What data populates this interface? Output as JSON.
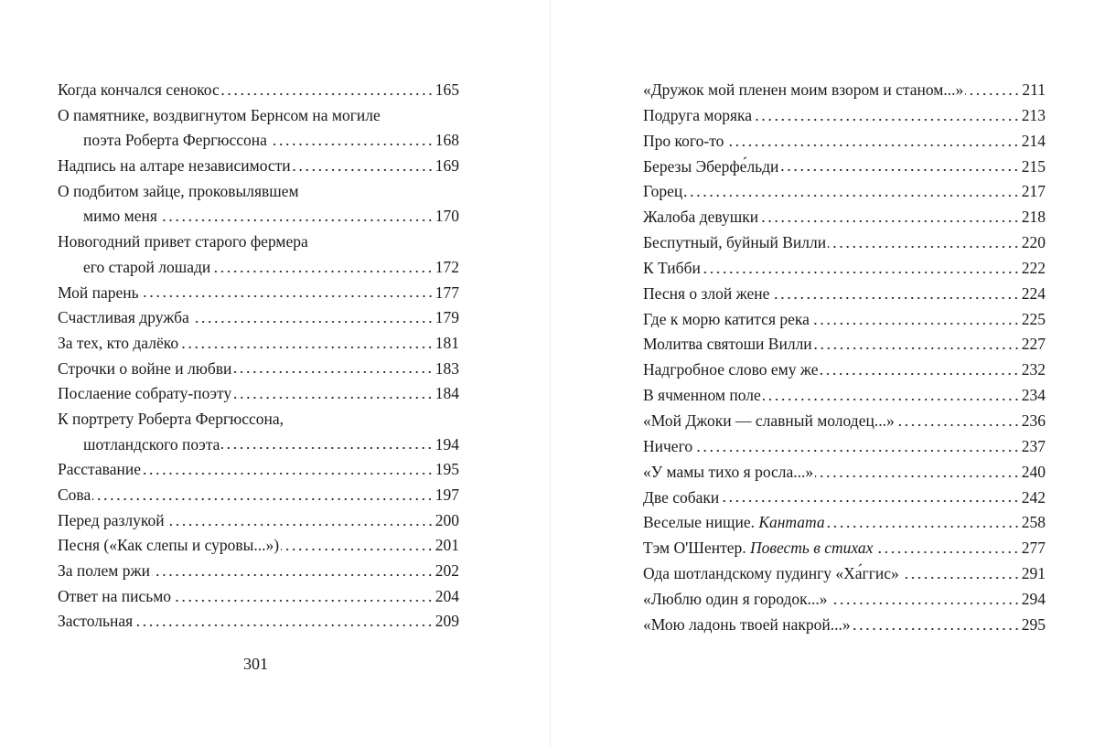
{
  "left_page": {
    "page_number": "301",
    "entries": [
      {
        "title": "Когда кончался сенокос",
        "page": "165"
      },
      {
        "title": "О памятнике, воздвигнутом Бернсом на могиле",
        "cont": "поэта Роберта Фергюссона",
        "page": "168"
      },
      {
        "title": "Надпись на алтаре независимости",
        "page": "169"
      },
      {
        "title": "О подбитом зайце, проковылявшем",
        "cont": "мимо меня",
        "page": "170"
      },
      {
        "title": "Новогодний привет старого фермера",
        "cont": "его старой лошади",
        "page": "172"
      },
      {
        "title": "Мой парень",
        "page": "177"
      },
      {
        "title": "Счастливая дружба",
        "page": "179"
      },
      {
        "title": "За тех,  кто далёко",
        "page": "181"
      },
      {
        "title": "Строчки о войне и любви",
        "page": "183"
      },
      {
        "title": "Послаение собрату-поэту",
        "page": "184"
      },
      {
        "title": "К портрету Роберта Фергюссона,",
        "cont": "шотландского поэта",
        "page": "194"
      },
      {
        "title": "Расставание",
        "page": "195"
      },
      {
        "title": "Сова",
        "page": "197"
      },
      {
        "title": "Перед разлукой",
        "page": "200"
      },
      {
        "title": "Песня («Как слепы и суровы...»)",
        "page": "201"
      },
      {
        "title": "За полем ржи",
        "page": "202"
      },
      {
        "title": "Ответ на письмо",
        "page": "204"
      },
      {
        "title": "Застольная",
        "page": "209"
      }
    ]
  },
  "right_page": {
    "entries": [
      {
        "title": "«Дружок мой пленен моим взором и станом...»",
        "page": "211"
      },
      {
        "title": "Подруга моряка",
        "page": "213"
      },
      {
        "title": "Про кого-то",
        "page": "214"
      },
      {
        "title": "Березы Эберфе́льди",
        "page": "215"
      },
      {
        "title": "Горец",
        "page": "217"
      },
      {
        "title": "Жалоба девушки",
        "page": "218"
      },
      {
        "title": "Беспутный, буйный Вилли",
        "page": "220"
      },
      {
        "title": "К Тибби",
        "page": "222"
      },
      {
        "title": "Песня о злой жене",
        "page": "224"
      },
      {
        "title": "Где к морю катится река",
        "page": "225"
      },
      {
        "title": "Молитва святоши Вилли",
        "page": "227"
      },
      {
        "title": "Надгробное слово ему же",
        "page": "232"
      },
      {
        "title": "В ячменном поле",
        "page": "234"
      },
      {
        "title": "«Мой Джоки — славный молодец...»",
        "page": "236"
      },
      {
        "title": "Ничего",
        "page": "237"
      },
      {
        "title": "«У мамы тихо я росла...»",
        "page": "240"
      },
      {
        "title": "Две собаки",
        "page": "242"
      },
      {
        "title": "Веселые нищие. ",
        "subtitle": "Кантата",
        "page": "258"
      },
      {
        "title": "Тэм О'Шентер. ",
        "subtitle": "Повесть в стихах",
        "page": "277"
      },
      {
        "title": "Ода шотландскому пудингу «Ха́ггис»",
        "page": "291"
      },
      {
        "title": "«Люблю один я городок...»",
        "page": "294"
      },
      {
        "title": "«Мою ладонь твоей накрой...»",
        "page": "295"
      }
    ]
  }
}
